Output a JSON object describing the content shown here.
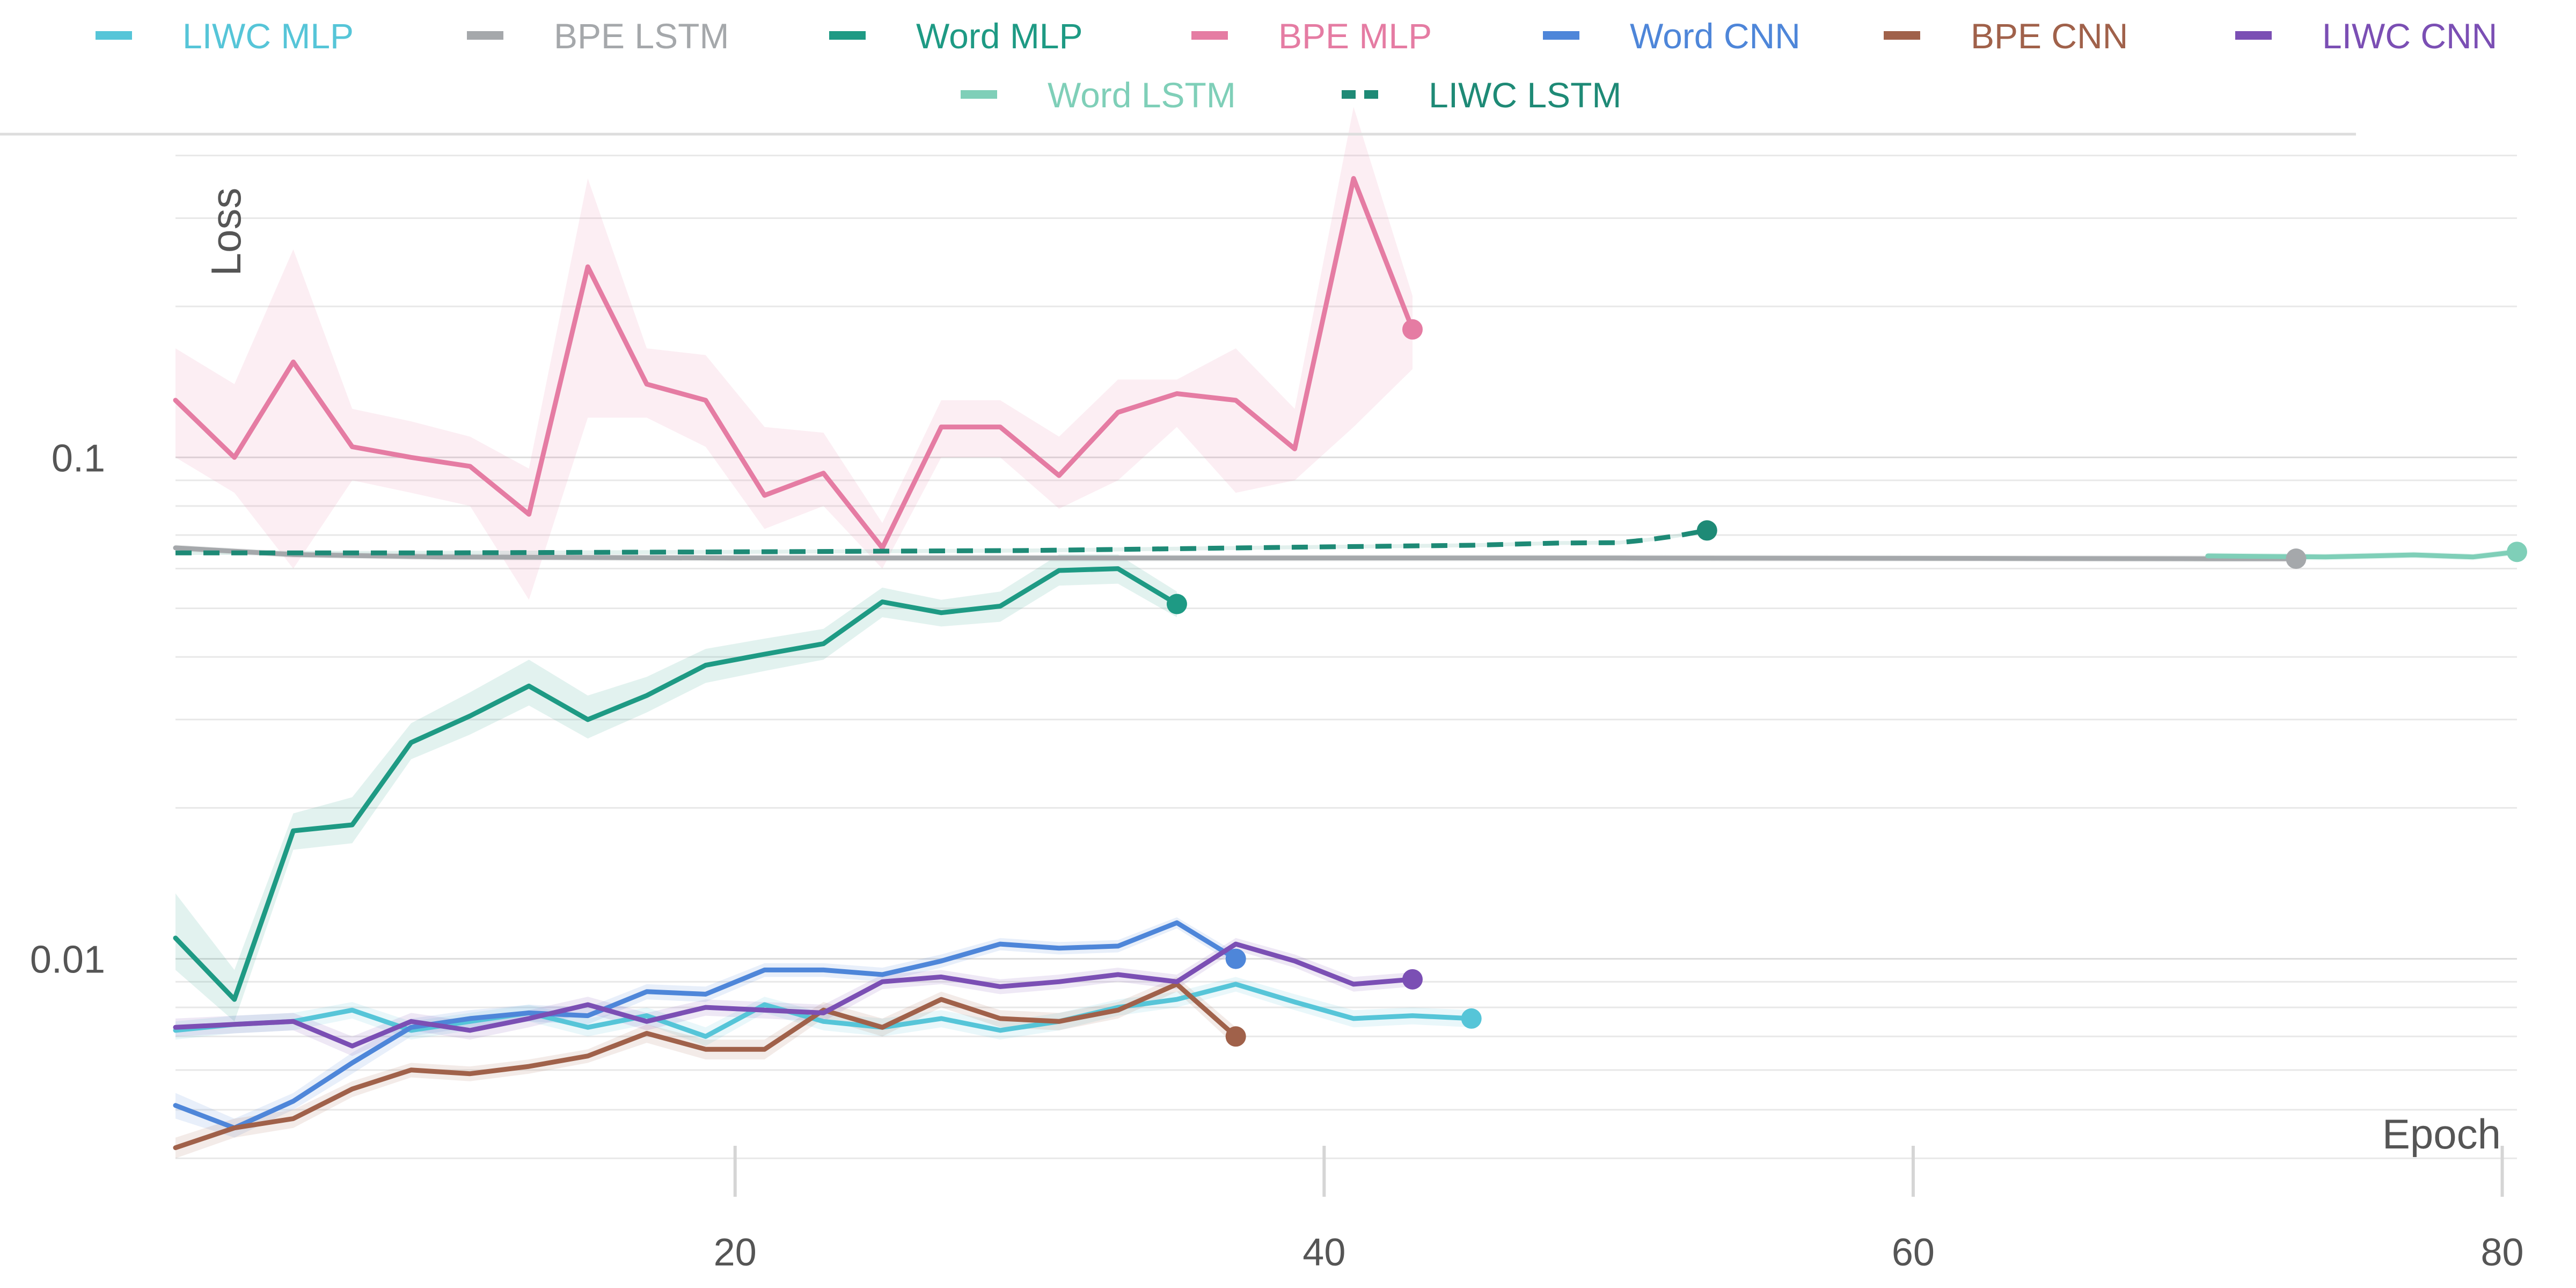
{
  "chart_data": {
    "type": "line",
    "title": "",
    "xlabel": "Epoch",
    "ylabel": "Loss",
    "x_scale": "linear",
    "y_scale": "log",
    "xlim": [
      1,
      80.5
    ],
    "ylim": [
      0.0037,
      0.42
    ],
    "x_ticks": [
      20,
      40,
      60,
      80
    ],
    "y_ticks": [
      0.01,
      0.1
    ],
    "y_tick_labels": [
      "0.01",
      "0.1"
    ],
    "grid": {
      "horizontal": true,
      "vertical": false
    },
    "legend_position": "top",
    "bands_shown": true,
    "series": [
      {
        "name": "LIWC MLP",
        "color": "#56c5d8",
        "dash": "solid",
        "x": [
          1,
          3,
          5,
          7,
          9,
          11,
          13,
          15,
          17,
          19,
          21,
          23,
          25,
          27,
          29,
          31,
          33,
          35,
          37,
          39,
          41,
          43,
          45
        ],
        "y": [
          0.0072,
          0.0074,
          0.0075,
          0.0079,
          0.0072,
          0.0075,
          0.0078,
          0.0073,
          0.0077,
          0.007,
          0.0081,
          0.0075,
          0.0073,
          0.0076,
          0.0072,
          0.0075,
          0.008,
          0.0083,
          0.0089,
          0.0082,
          0.0076,
          0.0077,
          0.0076
        ],
        "lower": [
          0.0069,
          0.0071,
          0.0072,
          0.0076,
          0.0069,
          0.0072,
          0.0075,
          0.007,
          0.0074,
          0.0067,
          0.0078,
          0.0072,
          0.007,
          0.0073,
          0.0069,
          0.0072,
          0.0077,
          0.008,
          0.0086,
          0.0079,
          0.0073,
          0.0074,
          0.0073
        ],
        "upper": [
          0.0075,
          0.0077,
          0.0078,
          0.0082,
          0.0075,
          0.0078,
          0.0081,
          0.0076,
          0.008,
          0.0073,
          0.0084,
          0.0078,
          0.0076,
          0.0079,
          0.0075,
          0.0078,
          0.0083,
          0.0086,
          0.0092,
          0.0085,
          0.0079,
          0.008,
          0.0079
        ]
      },
      {
        "name": "BPE LSTM",
        "color": "#a5a8ab",
        "dash": "solid",
        "x": [
          1,
          5,
          10,
          20,
          30,
          40,
          50,
          60,
          70,
          73
        ],
        "y": [
          0.066,
          0.064,
          0.0633,
          0.063,
          0.063,
          0.063,
          0.063,
          0.0629,
          0.0628,
          0.0628
        ],
        "lower": [
          0.065,
          0.063,
          0.0623,
          0.062,
          0.062,
          0.062,
          0.062,
          0.0619,
          0.0618,
          0.0618
        ],
        "upper": [
          0.067,
          0.065,
          0.0643,
          0.064,
          0.064,
          0.064,
          0.064,
          0.0639,
          0.0638,
          0.0638
        ]
      },
      {
        "name": "Word MLP",
        "color": "#1e9a84",
        "dash": "solid",
        "x": [
          1,
          3,
          5,
          7,
          9,
          11,
          13,
          15,
          17,
          19,
          21,
          23,
          25,
          27,
          29,
          31,
          33,
          35
        ],
        "y": [
          0.011,
          0.0083,
          0.018,
          0.0185,
          0.027,
          0.0305,
          0.035,
          0.03,
          0.0335,
          0.0385,
          0.0405,
          0.0425,
          0.0515,
          0.049,
          0.0505,
          0.0595,
          0.06,
          0.051
        ],
        "lower": [
          0.0095,
          0.0075,
          0.0165,
          0.017,
          0.025,
          0.028,
          0.032,
          0.0275,
          0.031,
          0.0355,
          0.0375,
          0.0395,
          0.048,
          0.046,
          0.047,
          0.0555,
          0.056,
          0.048
        ],
        "upper": [
          0.0135,
          0.0095,
          0.0195,
          0.021,
          0.0295,
          0.034,
          0.0395,
          0.0335,
          0.0365,
          0.0415,
          0.0435,
          0.0455,
          0.055,
          0.052,
          0.054,
          0.064,
          0.064,
          0.054
        ]
      },
      {
        "name": "BPE MLP",
        "color": "#e57ca3",
        "dash": "solid",
        "x": [
          1,
          3,
          5,
          7,
          9,
          11,
          13,
          15,
          17,
          19,
          21,
          23,
          25,
          27,
          29,
          31,
          33,
          35,
          37,
          39,
          41,
          43
        ],
        "y": [
          0.13,
          0.1,
          0.155,
          0.105,
          0.1,
          0.096,
          0.077,
          0.24,
          0.14,
          0.13,
          0.084,
          0.093,
          0.066,
          0.115,
          0.115,
          0.092,
          0.123,
          0.134,
          0.13,
          0.104,
          0.36,
          0.18
        ],
        "lower": [
          0.1,
          0.085,
          0.06,
          0.09,
          0.085,
          0.08,
          0.052,
          0.12,
          0.12,
          0.105,
          0.072,
          0.08,
          0.06,
          0.1,
          0.1,
          0.079,
          0.09,
          0.115,
          0.085,
          0.09,
          0.115,
          0.15
        ],
        "upper": [
          0.165,
          0.14,
          0.26,
          0.125,
          0.118,
          0.11,
          0.095,
          0.36,
          0.165,
          0.16,
          0.115,
          0.112,
          0.074,
          0.13,
          0.13,
          0.11,
          0.143,
          0.143,
          0.165,
          0.125,
          0.5,
          0.21
        ]
      },
      {
        "name": "Word CNN",
        "color": "#4e86d9",
        "dash": "solid",
        "x": [
          1,
          3,
          5,
          7,
          9,
          11,
          13,
          15,
          17,
          19,
          21,
          23,
          25,
          27,
          29,
          31,
          33,
          35,
          37
        ],
        "y": [
          0.0051,
          0.0046,
          0.0052,
          0.0062,
          0.0073,
          0.0076,
          0.0078,
          0.0077,
          0.0086,
          0.0085,
          0.0095,
          0.0095,
          0.0093,
          0.0099,
          0.0107,
          0.0105,
          0.0106,
          0.0118,
          0.01
        ],
        "lower": [
          0.0048,
          0.0044,
          0.005,
          0.0059,
          0.007,
          0.0073,
          0.0075,
          0.0074,
          0.0083,
          0.0082,
          0.0092,
          0.0092,
          0.009,
          0.0096,
          0.0104,
          0.0102,
          0.0103,
          0.0115,
          0.0097
        ],
        "upper": [
          0.0054,
          0.0048,
          0.0054,
          0.0065,
          0.0076,
          0.0079,
          0.0081,
          0.008,
          0.0089,
          0.0088,
          0.0098,
          0.0098,
          0.0096,
          0.0102,
          0.011,
          0.0108,
          0.0109,
          0.0121,
          0.0103
        ]
      },
      {
        "name": "BPE CNN",
        "color": "#a0614a",
        "dash": "solid",
        "x": [
          1,
          3,
          5,
          7,
          9,
          11,
          13,
          15,
          17,
          19,
          21,
          23,
          25,
          27,
          29,
          31,
          33,
          35,
          37
        ],
        "y": [
          0.0042,
          0.0046,
          0.0048,
          0.0055,
          0.006,
          0.0059,
          0.0061,
          0.0064,
          0.0071,
          0.0066,
          0.0066,
          0.0079,
          0.0073,
          0.0083,
          0.0076,
          0.0075,
          0.0079,
          0.0089,
          0.007
        ],
        "lower": [
          0.004,
          0.0044,
          0.0046,
          0.0053,
          0.0058,
          0.0057,
          0.0059,
          0.0062,
          0.0068,
          0.0063,
          0.0063,
          0.0076,
          0.007,
          0.008,
          0.0073,
          0.0072,
          0.0076,
          0.0086,
          0.0067
        ],
        "upper": [
          0.0044,
          0.0048,
          0.005,
          0.0057,
          0.0062,
          0.0061,
          0.0063,
          0.0066,
          0.0074,
          0.0069,
          0.0069,
          0.0082,
          0.0076,
          0.0086,
          0.0079,
          0.0078,
          0.0082,
          0.0092,
          0.0073
        ]
      },
      {
        "name": "LIWC CNN",
        "color": "#7b4fb4",
        "dash": "solid",
        "x": [
          1,
          3,
          5,
          7,
          9,
          11,
          13,
          15,
          17,
          19,
          21,
          23,
          25,
          27,
          29,
          31,
          33,
          35,
          37,
          39,
          41,
          43
        ],
        "y": [
          0.0073,
          0.0074,
          0.0075,
          0.0067,
          0.0075,
          0.0072,
          0.0076,
          0.0081,
          0.0075,
          0.008,
          0.0079,
          0.0078,
          0.009,
          0.0092,
          0.0088,
          0.009,
          0.0093,
          0.009,
          0.0107,
          0.0099,
          0.0089,
          0.0091
        ],
        "lower": [
          0.007,
          0.0071,
          0.0072,
          0.0064,
          0.0072,
          0.0069,
          0.0073,
          0.0078,
          0.0072,
          0.0077,
          0.0076,
          0.0075,
          0.0087,
          0.0089,
          0.0085,
          0.0087,
          0.009,
          0.0087,
          0.0104,
          0.0096,
          0.0086,
          0.0088
        ],
        "upper": [
          0.0076,
          0.0077,
          0.0078,
          0.007,
          0.0078,
          0.0075,
          0.0079,
          0.0084,
          0.0078,
          0.0083,
          0.0082,
          0.0081,
          0.0093,
          0.0095,
          0.0091,
          0.0093,
          0.0096,
          0.0093,
          0.011,
          0.0102,
          0.0092,
          0.0094
        ]
      },
      {
        "name": "Word LSTM",
        "color": "#7fcfb8",
        "dash": "solid",
        "x": [
          70,
          74,
          77,
          79,
          80.5
        ],
        "y": [
          0.0636,
          0.0633,
          0.0639,
          0.0633,
          0.0648
        ],
        "lower": [
          0.0626,
          0.0623,
          0.0629,
          0.0623,
          0.0638
        ],
        "upper": [
          0.0646,
          0.0643,
          0.0649,
          0.0643,
          0.0658
        ]
      },
      {
        "name": "LIWC LSTM",
        "color": "#1e8a76",
        "dash": "dashed",
        "x": [
          1,
          10,
          20,
          30,
          40,
          45,
          48,
          50,
          51,
          52,
          53
        ],
        "y": [
          0.0645,
          0.0645,
          0.0648,
          0.0652,
          0.0663,
          0.0668,
          0.0675,
          0.0676,
          0.0685,
          0.0698,
          0.0715
        ],
        "lower": [
          0.0639,
          0.0639,
          0.0642,
          0.0646,
          0.0657,
          0.0662,
          0.0669,
          0.067,
          0.0679,
          0.0692,
          0.0709
        ],
        "upper": [
          0.0651,
          0.0651,
          0.0654,
          0.0658,
          0.0669,
          0.0674,
          0.0681,
          0.0682,
          0.0691,
          0.0704,
          0.0721
        ]
      }
    ]
  }
}
